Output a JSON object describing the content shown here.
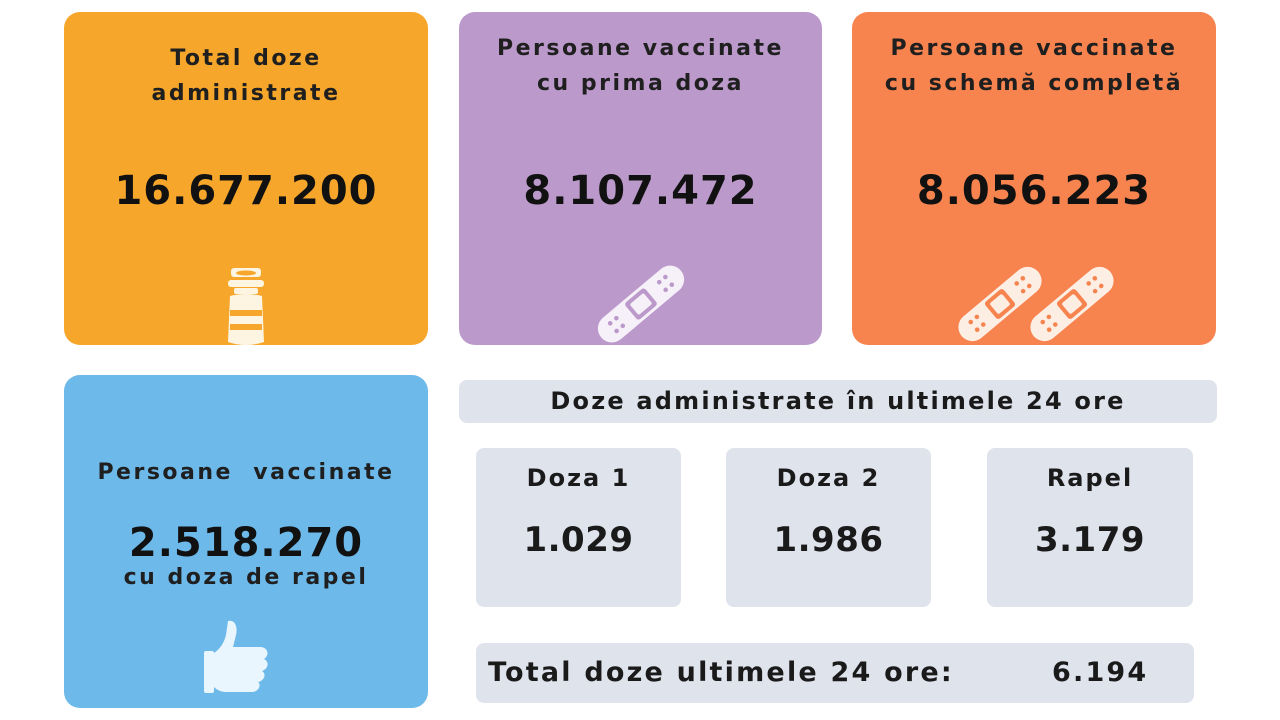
{
  "cards": {
    "total": {
      "title_l1": "Total doze",
      "title_l2": "administrate",
      "value": "16.677.200",
      "color": "#f6a72b",
      "icon": "vaccine-vial-icon"
    },
    "first_dose": {
      "title_l1": "Persoane vaccinate",
      "title_l2": "cu prima doza",
      "value": "8.107.472",
      "color": "#bb9acb",
      "icon": "bandage-icon"
    },
    "complete": {
      "title_l1": "Persoane vaccinate",
      "title_l2": "cu schemă completă",
      "value": "8.056.223",
      "color": "#f7844f",
      "icon": "two-bandages-icon"
    },
    "booster": {
      "title_l1": "Persoane  vaccinate",
      "title_l2": "cu doza de rapel",
      "value": "2.518.270",
      "color": "#6cb9ea",
      "icon": "thumbs-up-icon"
    }
  },
  "last24": {
    "header": "Doze administrate în ultimele 24 ore",
    "dose1": {
      "label": "Doza 1",
      "value": "1.029"
    },
    "dose2": {
      "label": "Doza 2",
      "value": "1.986"
    },
    "booster": {
      "label": "Rapel",
      "value": "3.179"
    },
    "total_label": "Total doze ultimele 24 ore:",
    "total_value": "6.194",
    "box_color": "#dfe3ec"
  }
}
